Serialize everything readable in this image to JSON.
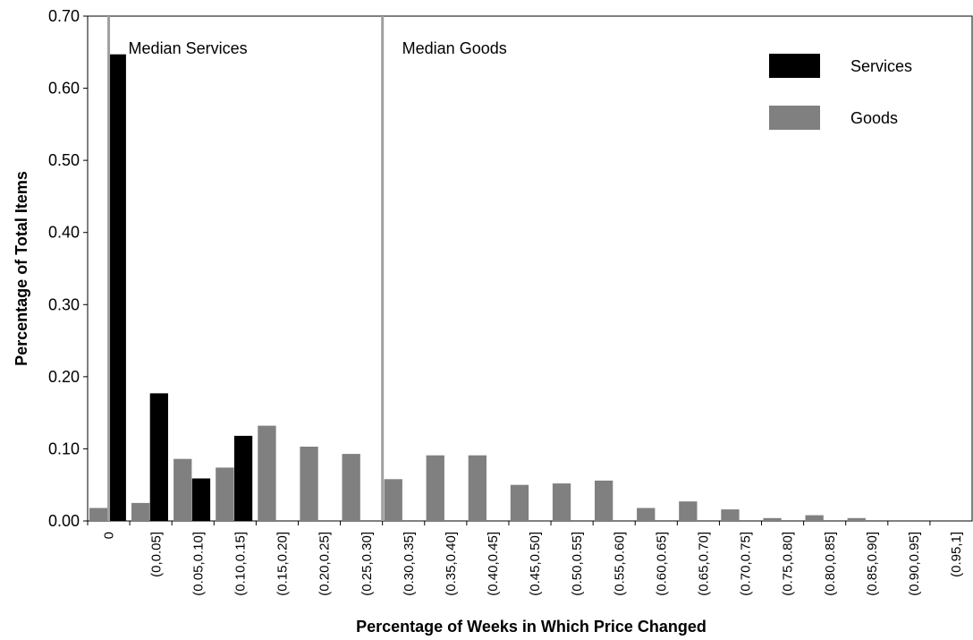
{
  "chart_data": {
    "type": "bar",
    "xlabel": "Percentage of Weeks in Which Price Changed",
    "ylabel": "Percentage of Total Items",
    "ylim": [
      0,
      0.7
    ],
    "yticks": [
      "0.00",
      "0.10",
      "0.20",
      "0.30",
      "0.40",
      "0.50",
      "0.60",
      "0.70"
    ],
    "categories": [
      "0",
      "(0,0.05]",
      "(0.05,0.10]",
      "(0.10,0.15]",
      "(0.15,0.20]",
      "(0.20,0.25]",
      "(0.25,0.30]",
      "(0.30,0.35]",
      "(0.35,0.40]",
      "(0.40,0.45]",
      "(0.45,0.50]",
      "(0.50,0.55]",
      "(0.55,0.60]",
      "(0.60,0.65]",
      "(0.65,0.70]",
      "(0.70,0.75]",
      "(0.75,0.80]",
      "(0.80,0.85]",
      "(0.85,0.90]",
      "(0.90,0.95]",
      "(0.95,1]"
    ],
    "series": [
      {
        "name": "Goods",
        "color": "#808080",
        "values": [
          0.018,
          0.025,
          0.086,
          0.074,
          0.132,
          0.103,
          0.093,
          0.058,
          0.091,
          0.091,
          0.05,
          0.052,
          0.056,
          0.018,
          0.027,
          0.016,
          0.004,
          0.008,
          0.004,
          0.0,
          0.0
        ]
      },
      {
        "name": "Services",
        "color": "#000000",
        "values": [
          0.647,
          0.177,
          0.059,
          0.118,
          0.0,
          0.0,
          0.0,
          0.0,
          0.0,
          0.0,
          0.0,
          0.0,
          0.0,
          0.0,
          0.0,
          0.0,
          0.0,
          0.0,
          0.0,
          0.0,
          0.0
        ]
      }
    ],
    "reference_lines": [
      {
        "label": "Median Services",
        "category_position": 0.5
      },
      {
        "label": "Median Goods",
        "category_position": 7.0
      }
    ],
    "legend": {
      "placement": "top-right",
      "items": [
        "Services",
        "Goods"
      ]
    },
    "grid": false
  }
}
